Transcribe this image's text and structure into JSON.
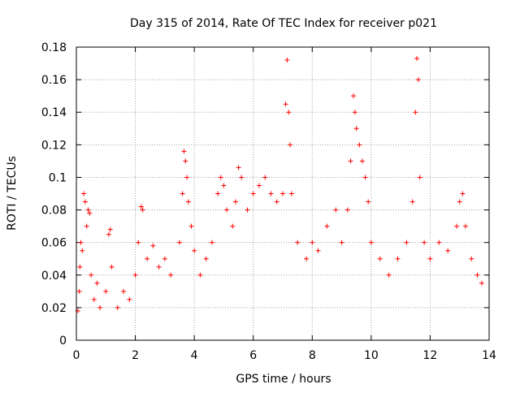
{
  "chart_data": {
    "type": "scatter",
    "title": "Day 315 of 2014, Rate Of TEC Index for receiver p021",
    "xlabel": "GPS time / hours",
    "ylabel": "ROTI / TECUs",
    "xlim": [
      0,
      14
    ],
    "ylim": [
      0,
      0.18
    ],
    "x_ticks": [
      0,
      2,
      4,
      6,
      8,
      10,
      12,
      14
    ],
    "x_tick_labels": [
      "0",
      "2",
      "4",
      "6",
      "8",
      "10",
      "12",
      "14"
    ],
    "y_ticks": [
      0,
      0.02,
      0.04,
      0.06,
      0.08,
      0.1,
      0.12,
      0.14,
      0.16,
      0.18
    ],
    "y_tick_labels": [
      "0",
      "0.02",
      "0.04",
      "0.06",
      "0.08",
      "0.1",
      "0.12",
      "0.14",
      "0.16",
      "0.18"
    ],
    "grid": true,
    "marker": "+",
    "color": "#ff0000",
    "points": [
      [
        0.05,
        0.018
      ],
      [
        0.1,
        0.03
      ],
      [
        0.12,
        0.045
      ],
      [
        0.15,
        0.06
      ],
      [
        0.2,
        0.055
      ],
      [
        0.25,
        0.09
      ],
      [
        0.3,
        0.085
      ],
      [
        0.35,
        0.07
      ],
      [
        0.4,
        0.08
      ],
      [
        0.45,
        0.078
      ],
      [
        0.5,
        0.04
      ],
      [
        0.6,
        0.025
      ],
      [
        0.7,
        0.035
      ],
      [
        0.8,
        0.02
      ],
      [
        1.0,
        0.03
      ],
      [
        1.1,
        0.065
      ],
      [
        1.15,
        0.068
      ],
      [
        1.2,
        0.045
      ],
      [
        1.4,
        0.02
      ],
      [
        1.6,
        0.03
      ],
      [
        1.8,
        0.025
      ],
      [
        2.0,
        0.04
      ],
      [
        2.1,
        0.06
      ],
      [
        2.2,
        0.082
      ],
      [
        2.25,
        0.08
      ],
      [
        2.4,
        0.05
      ],
      [
        2.6,
        0.058
      ],
      [
        2.8,
        0.045
      ],
      [
        3.0,
        0.05
      ],
      [
        3.2,
        0.04
      ],
      [
        3.5,
        0.06
      ],
      [
        3.6,
        0.09
      ],
      [
        3.65,
        0.116
      ],
      [
        3.7,
        0.11
      ],
      [
        3.75,
        0.1
      ],
      [
        3.8,
        0.085
      ],
      [
        3.9,
        0.07
      ],
      [
        4.0,
        0.055
      ],
      [
        4.2,
        0.04
      ],
      [
        4.4,
        0.05
      ],
      [
        4.6,
        0.06
      ],
      [
        4.8,
        0.09
      ],
      [
        4.9,
        0.1
      ],
      [
        5.0,
        0.095
      ],
      [
        5.1,
        0.08
      ],
      [
        5.3,
        0.07
      ],
      [
        5.4,
        0.085
      ],
      [
        5.5,
        0.106
      ],
      [
        5.6,
        0.1
      ],
      [
        5.8,
        0.08
      ],
      [
        6.0,
        0.09
      ],
      [
        6.2,
        0.095
      ],
      [
        6.4,
        0.1
      ],
      [
        6.6,
        0.09
      ],
      [
        6.8,
        0.085
      ],
      [
        7.0,
        0.09
      ],
      [
        7.1,
        0.145
      ],
      [
        7.15,
        0.172
      ],
      [
        7.2,
        0.14
      ],
      [
        7.25,
        0.12
      ],
      [
        7.3,
        0.09
      ],
      [
        7.5,
        0.06
      ],
      [
        7.8,
        0.05
      ],
      [
        8.0,
        0.06
      ],
      [
        8.2,
        0.055
      ],
      [
        8.5,
        0.07
      ],
      [
        8.8,
        0.08
      ],
      [
        9.0,
        0.06
      ],
      [
        9.2,
        0.08
      ],
      [
        9.3,
        0.11
      ],
      [
        9.4,
        0.15
      ],
      [
        9.45,
        0.14
      ],
      [
        9.5,
        0.13
      ],
      [
        9.6,
        0.12
      ],
      [
        9.7,
        0.11
      ],
      [
        9.8,
        0.1
      ],
      [
        9.9,
        0.085
      ],
      [
        10.0,
        0.06
      ],
      [
        10.3,
        0.05
      ],
      [
        10.6,
        0.04
      ],
      [
        10.9,
        0.05
      ],
      [
        11.2,
        0.06
      ],
      [
        11.4,
        0.085
      ],
      [
        11.5,
        0.14
      ],
      [
        11.55,
        0.173
      ],
      [
        11.6,
        0.16
      ],
      [
        11.65,
        0.1
      ],
      [
        11.8,
        0.06
      ],
      [
        12.0,
        0.05
      ],
      [
        12.3,
        0.06
      ],
      [
        12.6,
        0.055
      ],
      [
        12.9,
        0.07
      ],
      [
        13.0,
        0.085
      ],
      [
        13.1,
        0.09
      ],
      [
        13.2,
        0.07
      ],
      [
        13.4,
        0.05
      ],
      [
        13.6,
        0.04
      ],
      [
        13.75,
        0.035
      ]
    ]
  }
}
